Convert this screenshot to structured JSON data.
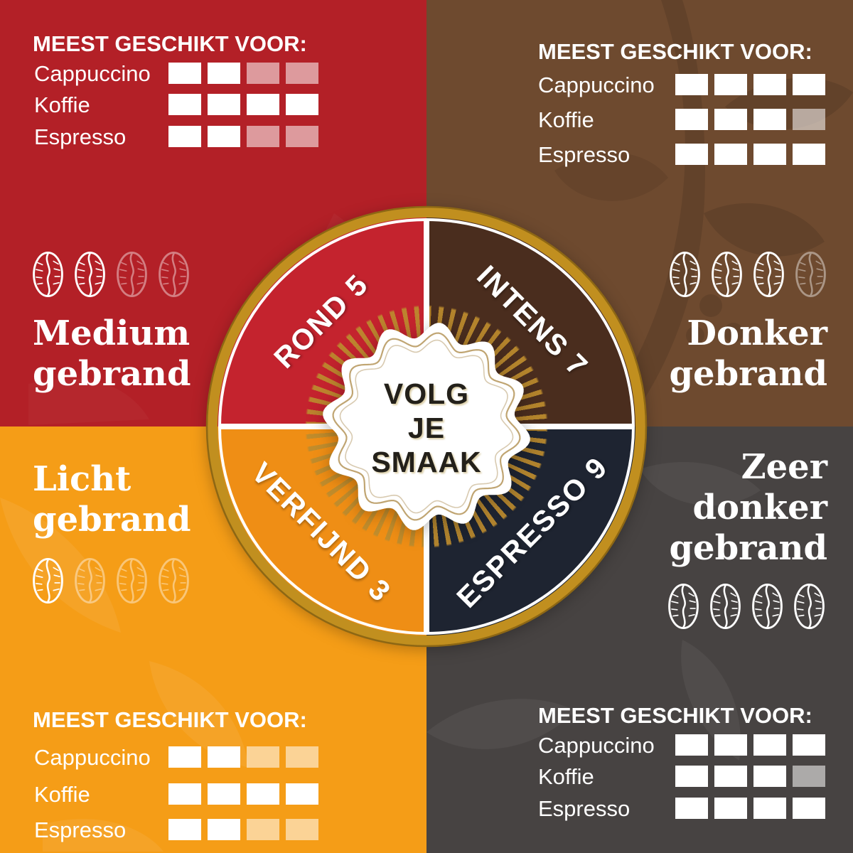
{
  "ratings_heading": "MEEST GESCHIKT VOOR:",
  "drinks": [
    "Cappuccino",
    "Koffie",
    "Espresso"
  ],
  "badge": {
    "line1": "VOLG",
    "line2": "JE",
    "line3": "SMAAK"
  },
  "quadrants": [
    {
      "id": "medium-gebrand",
      "roast_lines": [
        "Medium",
        "gebrand"
      ],
      "wheel_label": "ROND 5",
      "beans_filled": 2,
      "beans_total": 4,
      "max_rating": 4,
      "ratings": {
        "cappuccino": 2,
        "koffie": 4,
        "espresso": 2
      }
    },
    {
      "id": "donker-gebrand",
      "roast_lines": [
        "Donker",
        "gebrand"
      ],
      "wheel_label": "INTENS 7",
      "beans_filled": 3,
      "beans_total": 4,
      "max_rating": 4,
      "ratings": {
        "cappuccino": 4,
        "koffie": 3,
        "espresso": 4
      }
    },
    {
      "id": "licht-gebrand",
      "roast_lines": [
        "Licht",
        "gebrand"
      ],
      "wheel_label": "VERFIJND 3",
      "beans_filled": 1,
      "beans_total": 4,
      "max_rating": 4,
      "ratings": {
        "cappuccino": 2,
        "koffie": 4,
        "espresso": 2
      }
    },
    {
      "id": "zeer-donker-gebrand",
      "roast_lines": [
        "Zeer",
        "donker",
        "gebrand"
      ],
      "wheel_label": "ESPRESSO 9",
      "beans_filled": 4,
      "beans_total": 4,
      "max_rating": 4,
      "ratings": {
        "cappuccino": 4,
        "koffie": 3,
        "espresso": 4
      }
    }
  ],
  "colors": {
    "bg_red": "#b32027",
    "bg_brown": "#6e4a2f",
    "bg_orange": "#f59d17",
    "bg_gray": "#474342",
    "wheel_red": "#c4232e",
    "wheel_brown": "#4a2d1e",
    "wheel_orange": "#ef8e15",
    "wheel_navy": "#1e2431",
    "gold_ring": "#c18f1f",
    "gold_ray": "#bd8c2e",
    "badge_text": "#23201a"
  }
}
